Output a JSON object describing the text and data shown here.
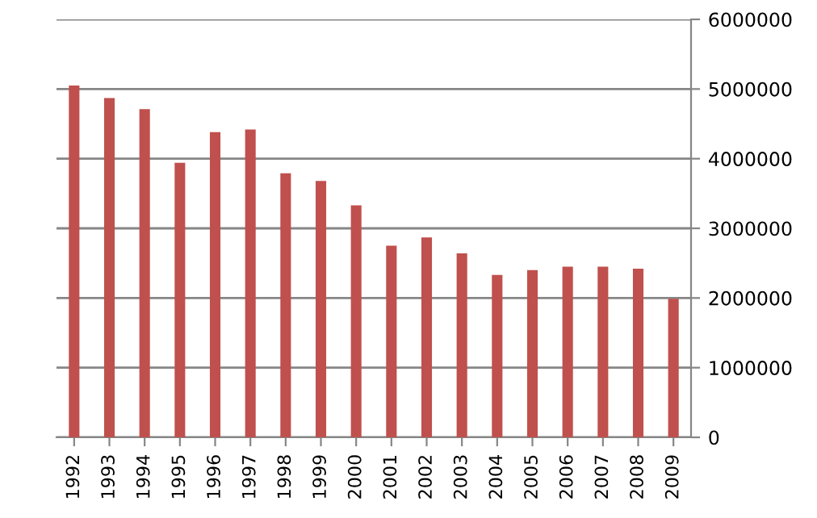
{
  "chart_data": {
    "type": "bar",
    "categories": [
      "1992",
      "1993",
      "1994",
      "1995",
      "1996",
      "1997",
      "1998",
      "1999",
      "2000",
      "2001",
      "2002",
      "2003",
      "2004",
      "2005",
      "2006",
      "2007",
      "2008",
      "2009"
    ],
    "values": [
      5050000,
      4870000,
      4710000,
      3940000,
      4380000,
      4420000,
      3790000,
      3680000,
      3330000,
      2750000,
      2870000,
      2640000,
      2330000,
      2400000,
      2450000,
      2450000,
      2420000,
      1990000
    ],
    "color": "#c0504d",
    "ylim": [
      0,
      6000000
    ],
    "yticks": [
      0,
      1000000,
      2000000,
      3000000,
      4000000,
      5000000,
      6000000
    ],
    "grid": "y"
  }
}
